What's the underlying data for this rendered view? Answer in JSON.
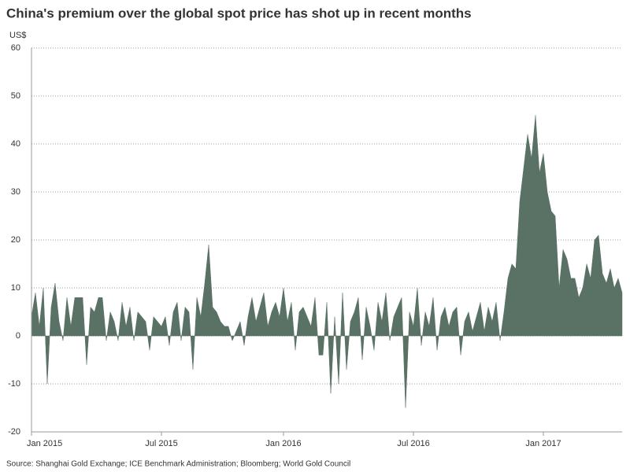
{
  "chart_data": {
    "type": "area",
    "title": "China's premium over the global spot price has shot up in recent months",
    "y_label": "US$",
    "source": "Source: Shanghai Gold Exchange; ICE Benchmark Administration; Bloomberg; World Gold Council",
    "color": "#5a7265",
    "grid": true,
    "ylim": [
      -20,
      60
    ],
    "yticks": [
      -20,
      -10,
      0,
      10,
      20,
      30,
      40,
      50,
      60
    ],
    "categories": [
      "Jan 2015",
      null,
      null,
      null,
      null,
      null,
      null,
      null,
      null,
      null,
      null,
      null,
      null,
      null,
      null,
      null,
      null,
      null,
      null,
      null,
      null,
      null,
      null,
      null,
      null,
      null,
      null,
      null,
      null,
      null,
      null,
      null,
      null,
      "Jul 2015",
      null,
      null,
      null,
      null,
      null,
      null,
      null,
      null,
      null,
      null,
      null,
      null,
      null,
      null,
      null,
      null,
      null,
      null,
      null,
      null,
      null,
      null,
      null,
      null,
      null,
      null,
      null,
      null,
      null,
      null,
      "Jan 2016",
      null,
      null,
      null,
      null,
      null,
      null,
      null,
      null,
      null,
      null,
      null,
      null,
      null,
      null,
      null,
      null,
      null,
      null,
      null,
      null,
      null,
      null,
      null,
      null,
      null,
      null,
      null,
      null,
      null,
      null,
      null,
      null,
      "Jul 2016",
      null,
      null,
      null,
      null,
      null,
      null,
      null,
      null,
      null,
      null,
      null,
      null,
      null,
      null,
      null,
      null,
      null,
      null,
      null,
      null,
      null,
      null,
      null,
      null,
      null,
      null,
      null,
      null,
      null,
      null,
      null,
      null,
      "Jan 2017",
      null,
      null,
      null,
      null,
      null,
      null,
      null,
      null,
      null,
      null,
      null,
      null,
      null,
      null,
      null,
      null,
      null,
      null,
      null,
      null
    ],
    "values": [
      4,
      9,
      2,
      10,
      -10,
      6,
      11,
      3,
      -1,
      8,
      2,
      8,
      8,
      8,
      -6,
      6,
      5,
      8,
      8,
      -1,
      5,
      3,
      -1,
      7,
      2,
      6,
      -1,
      5,
      4,
      3,
      -3,
      4,
      3,
      2,
      4,
      -2,
      5,
      7,
      -1,
      6,
      5,
      -7,
      8,
      4,
      11,
      19,
      6,
      5,
      3,
      2,
      2,
      -1,
      1,
      3,
      -2,
      4,
      8,
      3,
      6,
      9,
      2,
      5,
      7,
      4,
      10,
      3,
      7,
      -3,
      5,
      6,
      4,
      2,
      8,
      -4,
      -4,
      7,
      -12,
      4,
      -10,
      9,
      -7,
      3,
      5,
      8,
      -5,
      6,
      2,
      -3,
      7,
      3,
      9,
      -1,
      4,
      6,
      8,
      -15,
      5,
      2,
      10,
      -2,
      5,
      2,
      8,
      -3,
      4,
      6,
      2,
      5,
      6,
      -4,
      3,
      5,
      1,
      4,
      7,
      1,
      6,
      3,
      7,
      -1,
      5,
      12,
      15,
      14,
      28,
      35,
      42,
      37,
      46,
      34,
      38,
      30,
      26,
      25,
      10,
      18,
      16,
      12,
      12,
      8,
      10,
      15,
      12,
      20,
      21,
      13,
      11,
      14,
      10,
      12,
      9
    ]
  }
}
